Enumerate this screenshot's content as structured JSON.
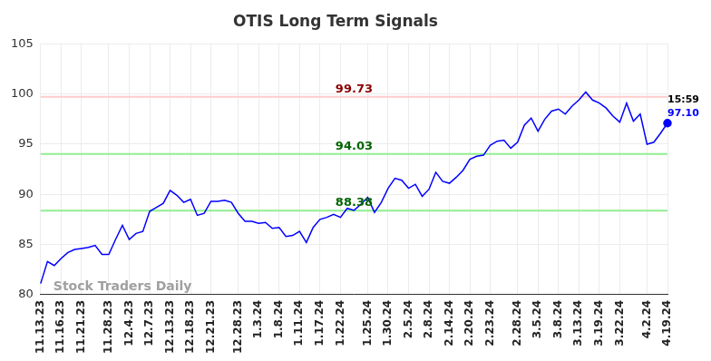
{
  "chart_data": {
    "type": "line",
    "title": "OTIS Long Term Signals",
    "categories": [
      "11.13.23",
      null,
      null,
      "11.16.23",
      null,
      null,
      "11.21.23",
      null,
      null,
      null,
      "11.28.23",
      null,
      null,
      "12.4.23",
      null,
      null,
      "12.7.23",
      null,
      null,
      "12.13.23",
      null,
      null,
      "12.18.23",
      null,
      null,
      "12.21.23",
      null,
      null,
      null,
      "12.28.23",
      null,
      null,
      "1.3.24",
      null,
      null,
      "1.8.24",
      null,
      null,
      "1.11.24",
      null,
      null,
      "1.17.24",
      null,
      null,
      "1.22.24",
      null,
      null,
      null,
      "1.25.24",
      null,
      null,
      "1.30.24",
      null,
      null,
      "2.5.24",
      null,
      null,
      "2.8.24",
      null,
      null,
      "2.14.24",
      null,
      null,
      "2.20.24",
      null,
      null,
      "2.23.24",
      null,
      null,
      null,
      "2.28.24",
      null,
      null,
      "3.5.24",
      null,
      null,
      "3.8.24",
      null,
      null,
      "3.13.24",
      null,
      null,
      "3.19.24",
      null,
      null,
      "3.22.24",
      null,
      null,
      null,
      "4.2.24",
      null,
      null,
      "4.19.24"
    ],
    "values": [
      81.1,
      83.3,
      82.9,
      83.6,
      84.2,
      84.5,
      84.6,
      84.7,
      84.9,
      84.0,
      84.0,
      85.5,
      86.9,
      85.5,
      86.1,
      86.3,
      88.3,
      88.7,
      89.1,
      90.4,
      89.9,
      89.2,
      89.5,
      87.9,
      88.1,
      89.3,
      89.3,
      89.4,
      89.2,
      88.1,
      87.3,
      87.3,
      87.1,
      87.2,
      86.6,
      86.7,
      85.8,
      85.9,
      86.3,
      85.2,
      86.7,
      87.5,
      87.7,
      88.0,
      87.7,
      88.6,
      88.4,
      89.0,
      89.7,
      88.2,
      89.2,
      90.6,
      91.6,
      91.4,
      90.6,
      91.0,
      89.8,
      90.5,
      92.2,
      91.3,
      91.1,
      91.7,
      92.4,
      93.5,
      93.8,
      93.9,
      94.9,
      95.3,
      95.4,
      94.6,
      95.2,
      96.9,
      97.6,
      96.3,
      97.5,
      98.3,
      98.5,
      98.0,
      98.8,
      99.4,
      100.2,
      99.4,
      99.1,
      98.6,
      97.8,
      97.2,
      99.1,
      97.3,
      98.0,
      95.0,
      95.2,
      96.1,
      97.1
    ],
    "color": "#0000ff",
    "ylim": [
      80,
      105
    ],
    "yticks": [
      80,
      85,
      90,
      95,
      100,
      105
    ],
    "grid": true,
    "annotations": [
      {
        "label": "99.73",
        "value": 99.73,
        "color": "#8b0000",
        "line_color": "#ffcccc"
      },
      {
        "label": "94.03",
        "value": 94.03,
        "color": "#006400",
        "line_color": "#90ee90"
      },
      {
        "label": "88.38",
        "value": 88.38,
        "color": "#006400",
        "line_color": "#90ee90"
      }
    ],
    "last_point": {
      "time_label": "15:59",
      "value_label": "97.10",
      "value": 97.1
    },
    "watermark": "Stock Traders Daily"
  }
}
